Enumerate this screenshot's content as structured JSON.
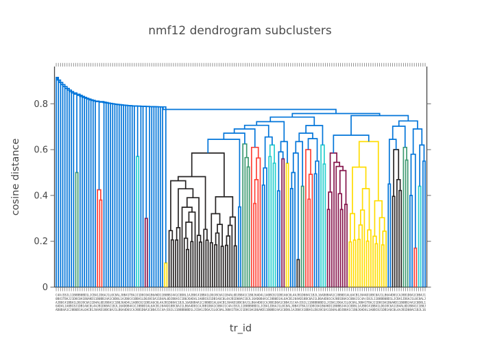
{
  "title": "nmf12 dendrogram subclusters",
  "xaxis": {
    "title": "tr_id",
    "tick_label_rows": 5,
    "tick_label_texture": "C4A(E8JL11B8BB0BD1LJCBA1JD6AJ1L0C8ALJ0B41TBAJJ1D8C0A1B6AKD11B0BBJ4A1C0D8L1AJB0C41BBA1LD0J8C6A11B4AL0DJB8A1C1B0J6AD4L1A0BC8J1DB1A6C0L4AJB1D08AC1BJL16AD0B4A1CJ8B0D1AL6ACB1J04AD18BC0AJ1LB6A4D01CAJ8B1D0A1C0B4J1"
  },
  "yaxis": {
    "title": "cosine distance",
    "tick_labels": [
      "0",
      "0.2",
      "0.4",
      "0.6",
      "0.8"
    ],
    "tick_values": [
      0,
      0.2,
      0.4,
      0.6,
      0.8
    ]
  },
  "chart_data": {
    "type": "dendrogram",
    "title": "nmf12 dendrogram subclusters",
    "xlabel": "tr_id",
    "ylabel": "cosine distance",
    "ylim": [
      0,
      0.96
    ],
    "grid": false,
    "legend": false,
    "n_leaves": 171,
    "palette": {
      "blue": "#0074D9",
      "red": "#FF4136",
      "green": "#3D9970",
      "cyan": "#23CDCD",
      "maroon": "#85144B",
      "yellow": "#FFDC00",
      "black": "#262323"
    },
    "link_color_above_threshold": "blue",
    "left_chain": {
      "comment": "staircase of merges, heights decay from start to end left-to-right",
      "height_start": 0.915,
      "height_end": 0.784,
      "decay": 11,
      "elements": [
        {
          "color": "blue",
          "count": 9
        },
        {
          "color": "green",
          "count": 2,
          "merges": [
            0.5
          ]
        },
        {
          "color": "blue",
          "count": 8
        },
        {
          "color": "red",
          "count": 3,
          "merges": [
            0.425,
            0.38
          ]
        },
        {
          "color": "blue",
          "count": 15
        },
        {
          "color": "cyan",
          "count": 2,
          "merges": [
            0.57
          ]
        },
        {
          "color": "blue",
          "count": 2
        },
        {
          "color": "maroon",
          "count": 2,
          "merges": [
            0.3
          ]
        },
        {
          "color": "blue",
          "count": 7
        },
        {
          "color": "yellow",
          "count": 2,
          "merges": [
            0.105
          ]
        }
      ]
    },
    "cluster_order": [
      "black32",
      "blue2a",
      "green4",
      "red5",
      "blue3a",
      "cyan4",
      "blue2b",
      "maroon2b",
      "yellow2b",
      "blue3b",
      "black2low",
      "green2b",
      "red4b",
      "blue3c",
      "cyan3b",
      "maroon10",
      "yellow18",
      "blue2c",
      "black5b",
      "green3b",
      "blue2d",
      "red2c",
      "cyan2c",
      "blue2e"
    ],
    "clusters": {
      "black32": {
        "color": "black",
        "count": 32,
        "shape": "bisect",
        "root": 0.585,
        "min": 0.055,
        "exp": 0.38
      },
      "blue2a": {
        "color": "blue",
        "count": 2,
        "shape": "pair",
        "root": 0.35
      },
      "green4": {
        "color": "green",
        "count": 4,
        "shape": "bisect",
        "root": 0.625,
        "min": 0.435
      },
      "red5": {
        "color": "red",
        "count": 5,
        "shape": "bisect",
        "root": 0.61,
        "min": 0.25
      },
      "blue3a": {
        "color": "blue",
        "count": 3,
        "shape": "bisect",
        "root": 0.52,
        "min": 0.4
      },
      "cyan4": {
        "color": "cyan",
        "count": 4,
        "shape": "bisect",
        "root": 0.62,
        "min": 0.46
      },
      "blue2b": {
        "color": "blue",
        "count": 2,
        "shape": "pair",
        "root": 0.42
      },
      "maroon2b": {
        "color": "maroon",
        "count": 2,
        "shape": "pair",
        "root": 0.56
      },
      "yellow2b": {
        "color": "yellow",
        "count": 2,
        "shape": "pair",
        "root": 0.54
      },
      "blue3b": {
        "color": "blue",
        "count": 3,
        "shape": "bisect",
        "root": 0.5,
        "min": 0.35
      },
      "black2low": {
        "color": "black",
        "count": 2,
        "shape": "pair",
        "root": 0.12
      },
      "green2b": {
        "color": "green",
        "count": 2,
        "shape": "pair",
        "root": 0.44
      },
      "red4b": {
        "color": "red",
        "count": 4,
        "shape": "bisect",
        "root": 0.6,
        "min": 0.18
      },
      "blue3c": {
        "color": "blue",
        "count": 3,
        "shape": "bisect",
        "root": 0.55,
        "min": 0.42
      },
      "cyan3b": {
        "color": "cyan",
        "count": 3,
        "shape": "bisect",
        "root": 0.62,
        "min": 0.5
      },
      "maroon10": {
        "color": "maroon",
        "count": 10,
        "shape": "bisect",
        "root": 0.585,
        "min": 0.25,
        "exp": 0.55
      },
      "yellow18": {
        "color": "yellow",
        "count": 18,
        "shape": "bisect",
        "root": 0.635,
        "min": 0.075,
        "exp": 0.55
      },
      "blue2c": {
        "color": "blue",
        "count": 2,
        "shape": "pair",
        "root": 0.45
      },
      "black5b": {
        "color": "black",
        "count": 5,
        "shape": "bisect",
        "root": 0.6,
        "min": 0.28
      },
      "green3b": {
        "color": "green",
        "count": 3,
        "shape": "bisect",
        "root": 0.61,
        "min": 0.44
      },
      "blue2d": {
        "color": "blue",
        "count": 2,
        "shape": "pair",
        "root": 0.4
      },
      "red2c": {
        "color": "red",
        "count": 2,
        "shape": "pair",
        "root": 0.17
      },
      "cyan2c": {
        "color": "cyan",
        "count": 2,
        "shape": "pair",
        "root": 0.44
      },
      "blue2e": {
        "color": "blue",
        "count": 2,
        "shape": "pair",
        "root": 0.55
      }
    },
    "toplevel_merges": [
      0.7755,
      "CHAIN",
      [
        0.7575,
        [
          0.742,
          [
            0.722,
            [
              0.706,
              [
                0.69,
                [
                  0.672,
                  [
                    0.645,
                    "black32",
                    "blue2a"
                  ],
                  "green4"
                ],
                "red5"
              ],
              [
                0.655,
                "blue3a",
                "cyan4"
              ]
            ],
            [
              0.635,
              [
                0.59,
                "blue2b",
                "maroon2b"
              ],
              "yellow2b"
            ]
          ],
          [
            0.705,
            [
              0.672,
              [
                0.635,
                [
                  0.585,
                  "blue3b",
                  "black2low"
                ],
                "green2b"
              ],
              [
                0.648,
                "red4b",
                "blue3c"
              ]
            ],
            "cyan3b"
          ]
        ],
        [
          0.7485,
          [
            0.663,
            "maroon10",
            "yellow18"
          ],
          [
            0.725,
            [
              0.702,
              [
                0.645,
                "blue2c",
                "black5b"
              ],
              "green3b"
            ],
            [
              0.69,
              [
                0.58,
                "blue2d",
                "red2c"
              ],
              [
                0.62,
                "cyan2c",
                "blue2e"
              ]
            ]
          ]
        ]
      ]
    ]
  }
}
